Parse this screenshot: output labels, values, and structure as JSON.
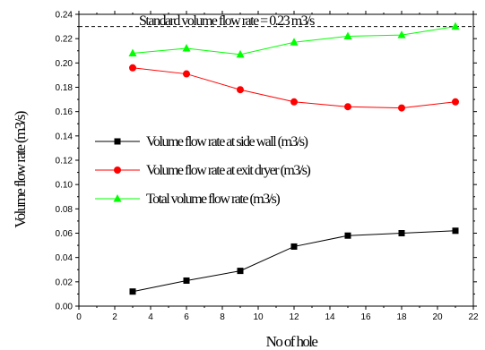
{
  "chart_data": {
    "type": "line",
    "xlabel": "No of hole",
    "ylabel": "Volume flow rate (m3/s)",
    "xlim": [
      0,
      22
    ],
    "ylim": [
      0,
      0.24
    ],
    "x_ticks": [
      "0",
      "2",
      "4",
      "6",
      "8",
      "10",
      "12",
      "14",
      "16",
      "18",
      "20",
      "22"
    ],
    "y_ticks": [
      "0.00",
      "0.02",
      "0.04",
      "0.06",
      "0.08",
      "0.10",
      "0.12",
      "0.14",
      "0.16",
      "0.18",
      "0.20",
      "0.22",
      "0.24"
    ],
    "x": [
      3,
      6,
      9,
      12,
      15,
      18,
      21
    ],
    "series": [
      {
        "name": "Volume flow rate at side wall (m3/s)",
        "values": [
          0.012,
          0.021,
          0.029,
          0.049,
          0.058,
          0.06,
          0.062
        ],
        "color": "#000000",
        "marker": "square"
      },
      {
        "name": "Volume flow rate at exit dryer (m3/s)",
        "values": [
          0.196,
          0.191,
          0.178,
          0.168,
          0.164,
          0.163,
          0.168
        ],
        "color": "#ff0000",
        "marker": "circle"
      },
      {
        "name": "Total volume flow rate (m3/s)",
        "values": [
          0.208,
          0.212,
          0.207,
          0.217,
          0.222,
          0.223,
          0.23
        ],
        "color": "#00ff00",
        "marker": "triangle"
      }
    ],
    "reference_line": {
      "value": 0.23,
      "label": "Standard volume flow rate = 0.23 m3/s",
      "style": "dashed"
    },
    "legend_position": "center-left",
    "grid": false
  }
}
